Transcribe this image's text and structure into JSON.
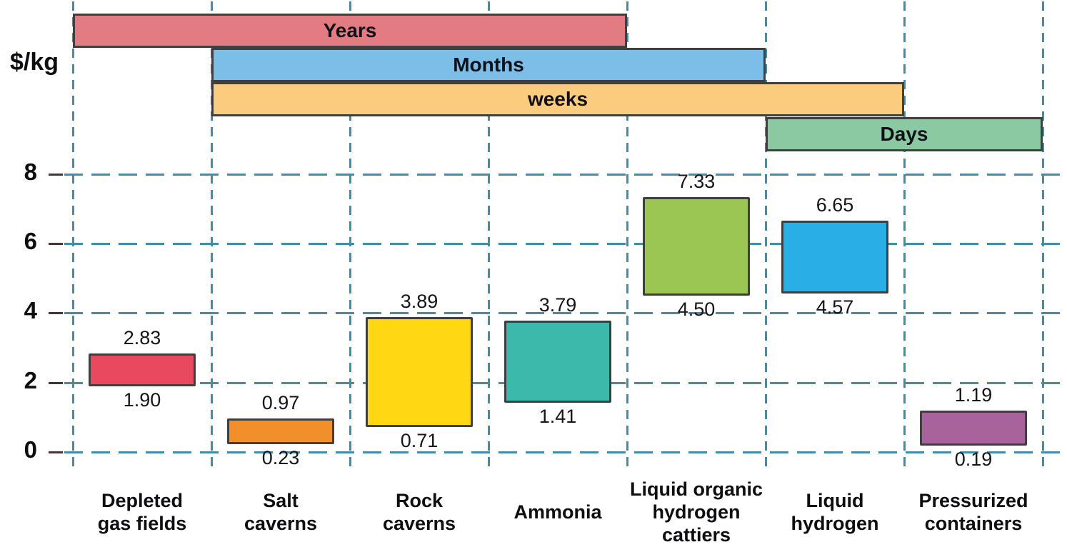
{
  "chart_data": {
    "type": "bar",
    "subtype": "floating-range-bars-with-duration-gantt",
    "title": "",
    "ylabel": "$/kg",
    "xlabel": "",
    "y_axis": {
      "range": [
        0,
        8
      ],
      "ticks": [
        0,
        2,
        4,
        6,
        8
      ]
    },
    "grid": {
      "style": "dashed",
      "vertical_lines": 8,
      "horizontal_on_ticks": true
    },
    "duration_bars": [
      {
        "label": "Years",
        "from_gridline": 0,
        "to_gridline": 4,
        "color": "#E27B82"
      },
      {
        "label": "Months",
        "from_gridline": 1,
        "to_gridline": 5,
        "color": "#7DBEE8"
      },
      {
        "label": "weeks",
        "from_gridline": 1,
        "to_gridline": 6,
        "color": "#FBCB7E"
      },
      {
        "label": "Days",
        "from_gridline": 5,
        "to_gridline": 7,
        "color": "#8BC9A3"
      }
    ],
    "categories": [
      {
        "key": "depleted-gas-fields",
        "label_lines": [
          "Depleted",
          "gas fields"
        ],
        "low": 1.9,
        "high": 2.83,
        "color": "#E8495E"
      },
      {
        "key": "salt-caverns",
        "label_lines": [
          "Salt",
          "caverns"
        ],
        "low": 0.23,
        "high": 0.97,
        "color": "#F1902A"
      },
      {
        "key": "rock-caverns",
        "label_lines": [
          "Rock",
          "caverns"
        ],
        "low": 0.71,
        "high": 3.89,
        "color": "#FFD712"
      },
      {
        "key": "ammonia",
        "label_lines": [
          "Ammonia"
        ],
        "low": 1.41,
        "high": 3.79,
        "color": "#3CB9AB"
      },
      {
        "key": "liquid-organic-hydrogen-cattiers",
        "label_lines": [
          "Liquid organic",
          "hydrogen",
          "cattiers"
        ],
        "low": 4.5,
        "high": 7.33,
        "color": "#9CC654"
      },
      {
        "key": "liquid-hydrogen",
        "label_lines": [
          "Liquid",
          "hydrogen"
        ],
        "low": 4.57,
        "high": 6.65,
        "color": "#29AEE5"
      },
      {
        "key": "pressurized-containers",
        "label_lines": [
          "Pressurized",
          "containers"
        ],
        "low": 0.19,
        "high": 1.19,
        "color": "#A8639D"
      }
    ],
    "colors": {
      "gridline": "#3E8FA9",
      "axis_tick": "#453634",
      "bar_border": "#3F3F3F",
      "text": "#0D0D12"
    }
  }
}
